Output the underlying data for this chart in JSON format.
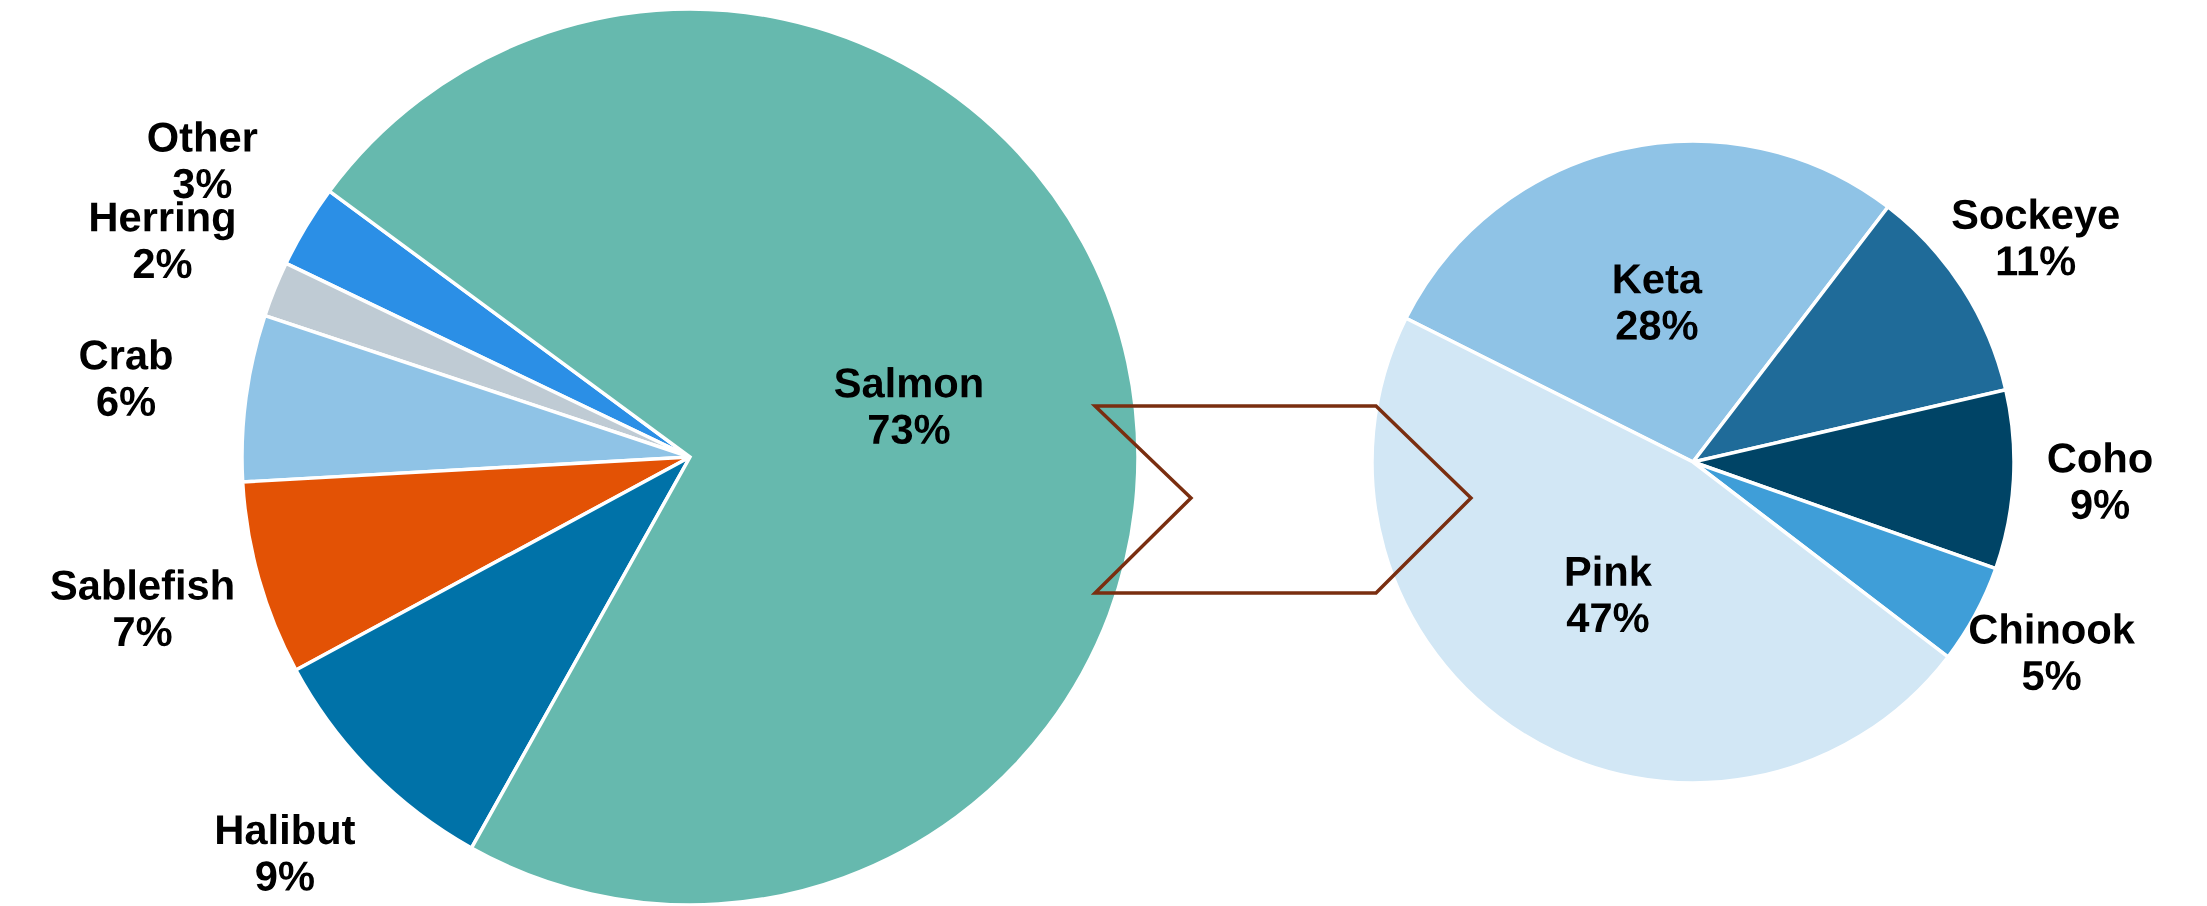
{
  "chart_data": [
    {
      "type": "pie",
      "categories": [
        "Other",
        "Herring",
        "Crab",
        "Sablefish",
        "Halibut",
        "Salmon"
      ],
      "values": [
        3,
        2,
        6,
        7,
        9,
        73
      ],
      "value_labels": [
        "3%",
        "2%",
        "6%",
        "7%",
        "9%",
        "73%"
      ],
      "colors": [
        "#2b8fe6",
        "#bfcbd4",
        "#8fc3e6",
        "#e35205",
        "#0072a8",
        "#66b9ae"
      ]
    },
    {
      "type": "pie",
      "categories": [
        "Keta",
        "Sockeye",
        "Coho",
        "Chinook",
        "Pink"
      ],
      "values": [
        28,
        11,
        9,
        5,
        47
      ],
      "value_labels": [
        "28%",
        "11%",
        "9%",
        "5%",
        "47%"
      ],
      "colors": [
        "#8fc3e6",
        "#1f6b99",
        "#004466",
        "#3f9ed8",
        "#d2e7f5"
      ]
    }
  ]
}
